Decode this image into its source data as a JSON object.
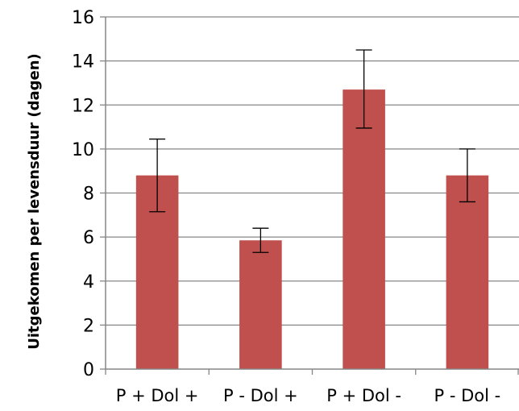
{
  "chart_data": {
    "type": "bar",
    "title": "",
    "xlabel": "",
    "ylabel": "Uitgekomen per levensduur (dagen)",
    "categories": [
      "P + Dol +",
      "P - Dol +",
      "P + Dol -",
      "P - Dol -"
    ],
    "values": [
      8.8,
      5.85,
      12.7,
      8.8
    ],
    "error_low": [
      7.15,
      5.3,
      10.95,
      7.6
    ],
    "error_high": [
      10.45,
      6.4,
      14.5,
      10.0
    ],
    "ylim": [
      0,
      16
    ],
    "yticks": [
      0,
      2,
      4,
      6,
      8,
      10,
      12,
      14,
      16
    ],
    "grid": true,
    "legend": "none",
    "bar_color": "#C0504D",
    "gridline_color": "#868686",
    "errorbar_color": "#000000"
  }
}
